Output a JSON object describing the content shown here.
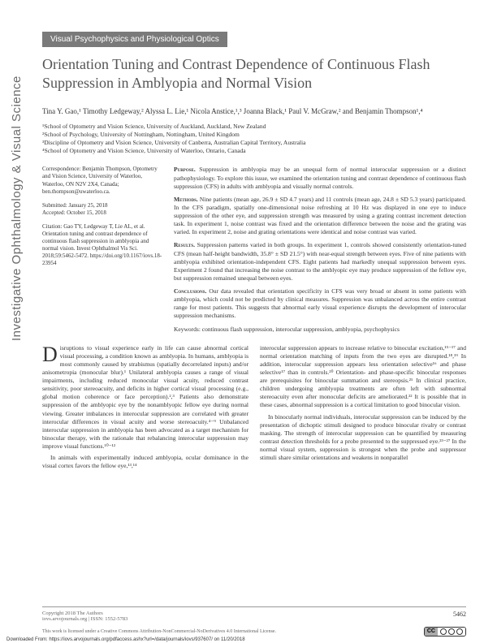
{
  "journal_sidebar": "Investigative Ophthalmology & Visual Science",
  "category": "Visual Psychophysics and Physiological Optics",
  "title": "Orientation Tuning and Contrast Dependence of Continuous Flash Suppression in Amblyopia and Normal Vision",
  "authors_html": "Tina Y. Gao,¹ Timothy Ledgeway,² Alyssa L. Lie,¹ Nicola Anstice,¹,³ Joanna Black,¹ Paul V. McGraw,² and Benjamin Thompson¹,⁴",
  "affiliations": {
    "a1": "¹School of Optometry and Vision Science, University of Auckland, Auckland, New Zealand",
    "a2": "²School of Psychology, University of Nottingham, Nottingham, United Kingdom",
    "a3": "³Discipline of Optometry and Vision Science, University of Canberra, Australian Capital Territory, Australia",
    "a4": "⁴School of Optometry and Vision Science, University of Waterloo, Ontario, Canada"
  },
  "correspondence": {
    "block1": "Correspondence: Benjamin Thompson, Optometry and Vision Science, University of Waterloo, Waterloo, ON N2V 2X4, Canada; ben.thompson@uwaterloo.ca.",
    "block2": "Submitted: January 25, 2018\nAccepted: October 15, 2018",
    "block3": "Citation: Gao TY, Ledgeway T, Lie AL, et al. Orientation tuning and contrast dependence of continuous flash suppression in amblyopia and normal vision. Invest Ophthalmol Vis Sci. 2018;59:5462-5472. https://doi.org/10.1167/iovs.18-23954"
  },
  "abstract": {
    "purpose": "Suppression in amblyopia may be an unequal form of normal interocular suppression or a distinct pathophysiology. To explore this issue, we examined the orientation tuning and contrast dependence of continuous flash suppression (CFS) in adults with amblyopia and visually normal controls.",
    "methods": "Nine patients (mean age, 26.9 ± SD 4.7 years) and 11 controls (mean age, 24.8 ± SD 5.3 years) participated. In the CFS paradigm, spatially one-dimensional noise refreshing at 10 Hz was displayed in one eye to induce suppression of the other eye, and suppression strength was measured by using a grating contrast increment detection task. In experiment 1, noise contrast was fixed and the orientation difference between the noise and the grating was varied. In experiment 2, noise and grating orientations were identical and noise contrast was varied.",
    "results": "Suppression patterns varied in both groups. In experiment 1, controls showed consistently orientation-tuned CFS (mean half-height bandwidth, 35.8° ± SD 21.5°) with near-equal strength between eyes. Five of nine patients with amblyopia exhibited orientation-independent CFS. Eight patients had markedly unequal suppression between eyes. Experiment 2 found that increasing the noise contrast to the amblyopic eye may produce suppression of the fellow eye, but suppression remained unequal between eyes.",
    "conclusions": "Our data revealed that orientation specificity in CFS was very broad or absent in some patients with amblyopia, which could not be predicted by clinical measures. Suppression was unbalanced across the entire contrast range for most patients. This suggests that abnormal early visual experience disrupts the development of interocular suppression mechanisms.",
    "keywords": "Keywords: continuous flash suppression, interocular suppression, amblyopia, psychophysics"
  },
  "body": {
    "col1_p1": "isruptions to visual experience early in life can cause abnormal cortical visual processing, a condition known as amblyopia. In humans, amblyopia is most commonly caused by strabismus (spatially decorrelated inputs) and/or anisometropia (monocular blur).¹ Unilateral amblyopia causes a range of visual impairments, including reduced monocular visual acuity, reduced contrast sensitivity, poor stereoacuity, and deficits in higher cortical visual processing (e.g., global motion coherence or face perception).²,³ Patients also demonstrate suppression of the amblyopic eye by the nonamblyopic fellow eye during normal viewing. Greater imbalances in interocular suppression are correlated with greater interocular differences in visual acuity and worse stereoacuity.⁴⁻⁹ Unbalanced interocular suppression in amblyopia has been advocated as a target mechanism for binocular therapy, with the rationale that rebalancing interocular suppression may improve visual functions.¹⁰⁻¹²",
    "col1_p2": "In animals with experimentally induced amblyopia, ocular dominance in the visual cortex favors the fellow eye,¹³,¹⁴",
    "col2_p1": "interocular suppression appears to increase relative to binocular excitation,¹⁵⁻¹⁷ and normal orientation matching of inputs from the two eyes are disrupted.¹⁸,¹⁹ In addition, interocular suppression appears less orientation selective¹⁶ and phase selective¹⁷ than in controls.²⁰ Orientation- and phase-specific binocular responses are prerequisites for binocular summation and stereopsis.²¹ In clinical practice, children undergoing amblyopia treatments are often left with subnormal stereoacuity even after monocular deficits are ameliorated.²² It is possible that in these cases, abnormal suppression is a cortical limitation to good binocular vision.",
    "col2_p2": "In binocularly normal individuals, interocular suppression can be induced by the presentation of dichoptic stimuli designed to produce binocular rivalry or contrast masking. The strength of interocular suppression can be quantified by measuring contrast detection thresholds for a probe presented to the suppressed eye.²³⁻²⁷ In the normal visual system, suppression is strongest when the probe and suppressor stimuli share similar orientations and weakens in nonparallel"
  },
  "footer": {
    "copyright": "Copyright 2018 The Authors",
    "site": "iovs.arvojournals.org | ISSN: 1552-5783",
    "page": "5462",
    "license": "This work is licensed under a Creative Commons Attribution-NonCommercial-NoDerivatives 4.0 International License.",
    "downloaded": "Downloaded From: https://iovs.arvojournals.org/pdfaccess.ashx?url=/data/journals/iovs/937607/ on 11/20/2018"
  },
  "colors": {
    "badge_bg": "#7a7a7a",
    "title_color": "#555555",
    "text_color": "#333333",
    "sidebar_color": "#6b6b6b"
  },
  "typography": {
    "title_fontsize": 18,
    "body_fontsize": 7.5,
    "abstract_fontsize": 7.5,
    "sidebar_fontsize": 15
  }
}
